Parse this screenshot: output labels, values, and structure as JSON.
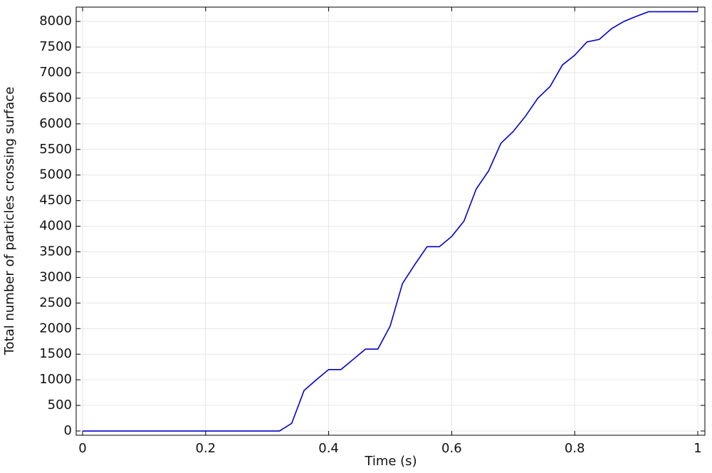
{
  "chart_data": {
    "type": "line",
    "x_label": "Time (s)",
    "y_label": "Total number of particles crossing surface",
    "x": [
      0,
      0.02,
      0.04,
      0.06,
      0.08,
      0.1,
      0.12,
      0.14,
      0.16,
      0.18,
      0.2,
      0.22,
      0.24,
      0.26,
      0.28,
      0.3,
      0.32,
      0.34,
      0.36,
      0.38,
      0.4,
      0.42,
      0.44,
      0.46,
      0.48,
      0.5,
      0.52,
      0.54,
      0.56,
      0.58,
      0.6,
      0.62,
      0.64,
      0.66,
      0.68,
      0.7,
      0.72,
      0.74,
      0.76,
      0.78,
      0.8,
      0.82,
      0.84,
      0.86,
      0.88,
      0.9,
      0.92,
      0.94,
      0.96,
      0.98,
      1
    ],
    "series": [
      {
        "color": "#0000cc",
        "values": [
          0,
          0,
          0,
          0,
          0,
          0,
          0,
          0,
          0,
          0,
          0,
          0,
          0,
          0,
          0,
          0,
          0,
          150,
          790,
          1000,
          1200,
          1200,
          1400,
          1600,
          1600,
          2050,
          2880,
          3250,
          3600,
          3600,
          3800,
          4100,
          4730,
          5080,
          5620,
          5850,
          6150,
          6500,
          6730,
          7150,
          7340,
          7600,
          7650,
          7860,
          8000,
          8100,
          8190,
          8190,
          8190,
          8190,
          8190
        ]
      }
    ],
    "xlim": [
      -0.0104,
      1.0116
    ],
    "ylim": [
      -83,
      8280
    ],
    "xticks": [
      0,
      0.2,
      0.4,
      0.6,
      0.8,
      1
    ],
    "yticks": [
      0,
      500,
      1000,
      1500,
      2000,
      2500,
      3000,
      3500,
      4000,
      4500,
      5000,
      5500,
      6000,
      6500,
      7000,
      7500,
      8000
    ],
    "grid": true
  }
}
